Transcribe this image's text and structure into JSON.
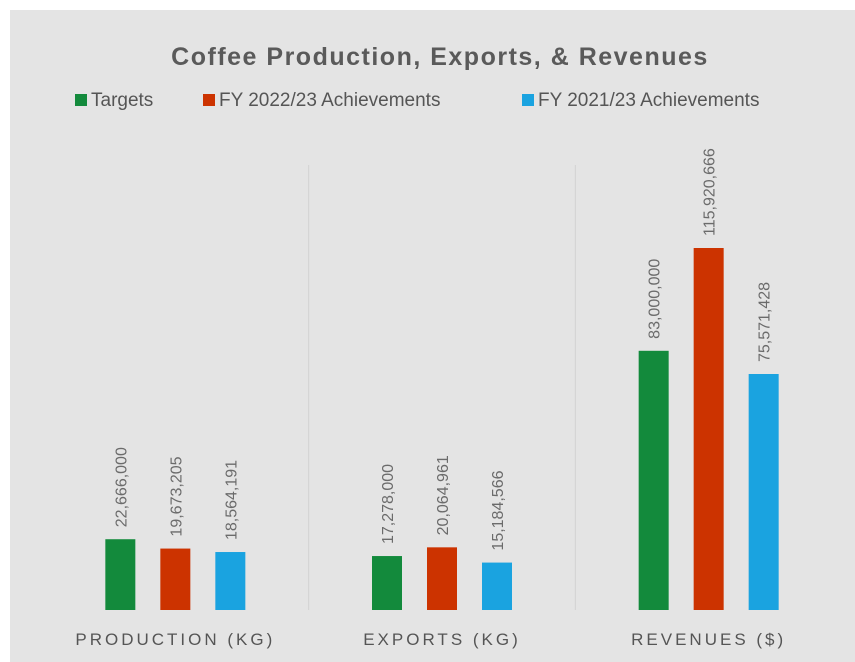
{
  "chart_data": {
    "type": "bar",
    "title": "Coffee Production, Exports, & Revenues",
    "categories": [
      "PRODUCTION (KG)",
      "EXPORTS (KG)",
      "REVENUES ($)"
    ],
    "series": [
      {
        "name": "Targets",
        "color": "#138a3c",
        "values": [
          22666000,
          17278000,
          83000000
        ],
        "labels": [
          "22,666,000",
          "17,278,000",
          "83,000,000"
        ]
      },
      {
        "name": "FY 2022/23 Achievements",
        "color": "#cc3300",
        "values": [
          19673205,
          20064961,
          115920666
        ],
        "labels": [
          "19,673,205",
          "20,064,961",
          "115,920,666"
        ]
      },
      {
        "name": "FY 2021/23 Achievements",
        "color": "#1aa3e0",
        "values": [
          18564191,
          15184566,
          75571428
        ],
        "labels": [
          "18,564,191",
          "15,184,566",
          "75,571,428"
        ]
      }
    ],
    "ylim": [
      0,
      115920666
    ],
    "grid": false,
    "legend_position": "top",
    "data_label_orientation": "vertical",
    "background": "#e4e4e4"
  }
}
